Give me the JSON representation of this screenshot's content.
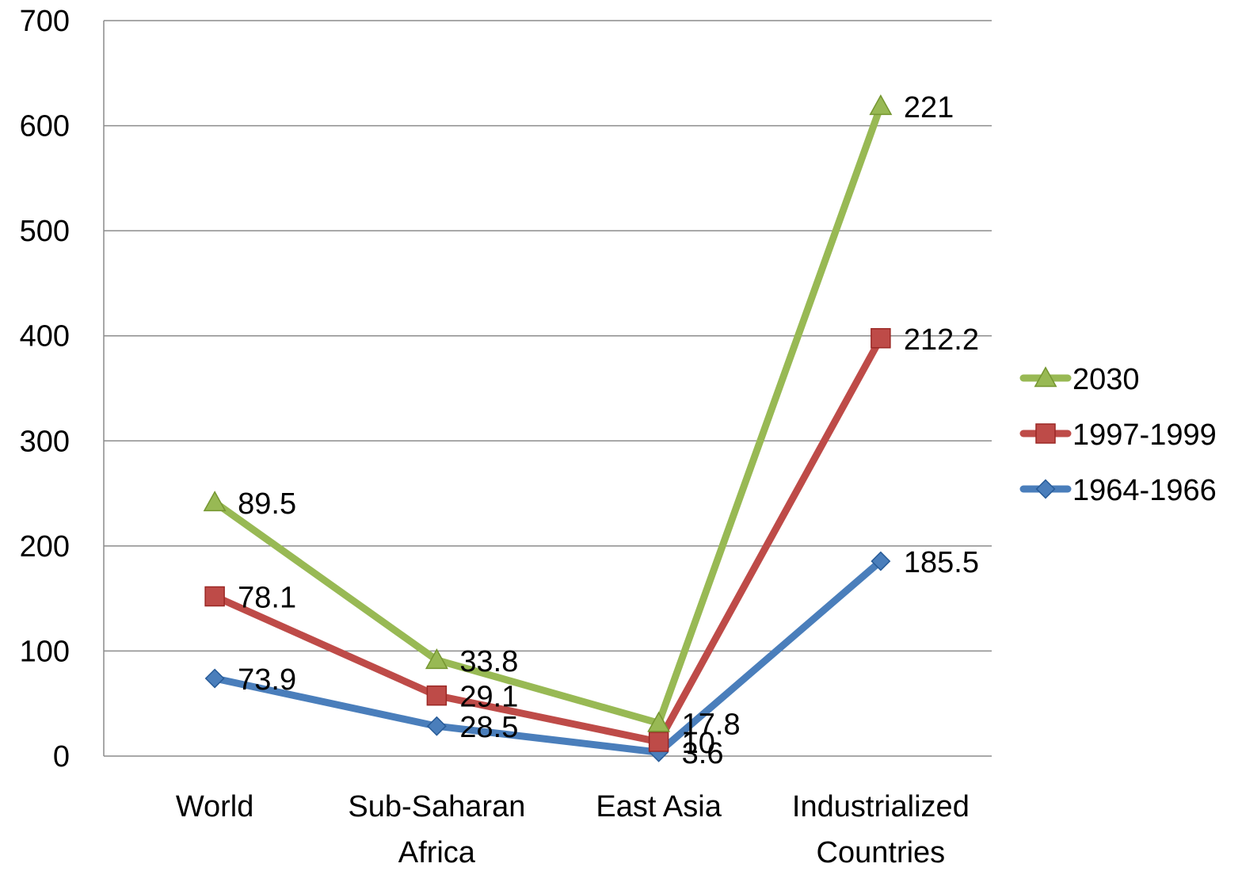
{
  "chart_data": {
    "type": "line",
    "title": "",
    "xlabel": "",
    "ylabel": "",
    "ylim": [
      0,
      700
    ],
    "yticks": [
      0,
      100,
      200,
      300,
      400,
      500,
      600,
      700
    ],
    "grid": "horizontal",
    "legend_position": "right",
    "categories": [
      [
        "World"
      ],
      [
        "Sub-Saharan",
        "Africa"
      ],
      [
        "East Asia"
      ],
      [
        "Industrialized",
        "Countries"
      ]
    ],
    "series": [
      {
        "name": "1964-1966",
        "color": "#4A7EBB",
        "marker": "diamond",
        "values": [
          73.9,
          28.5,
          3.6,
          185.5
        ],
        "labels": [
          "73.9",
          "28.5",
          "3.6",
          "185.5"
        ]
      },
      {
        "name": "1997-1999",
        "color": "#BE4B48",
        "marker": "square",
        "values": [
          152.0,
          57.6,
          13.6,
          397.7
        ],
        "labels": [
          "78.1",
          "29.1",
          "10",
          "212.2"
        ]
      },
      {
        "name": "2030",
        "color": "#98B954",
        "marker": "triangle",
        "values": [
          241.5,
          91.4,
          31.4,
          618.7
        ],
        "labels": [
          "89.5",
          "33.8",
          "17.8",
          "221"
        ]
      }
    ],
    "legend_order": [
      "2030",
      "1997-1999",
      "1964-1966"
    ]
  }
}
